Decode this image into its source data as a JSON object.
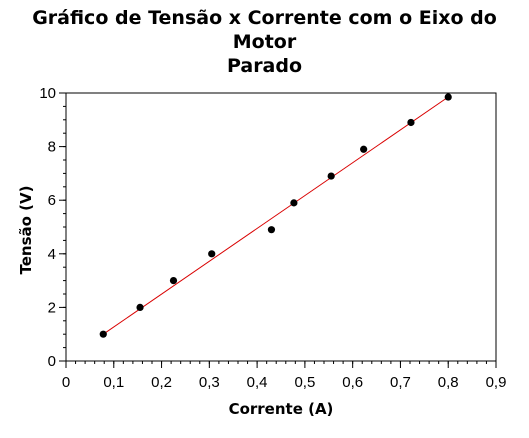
{
  "chart_data": {
    "type": "scatter",
    "title_line1": "Gráfico de Tensão x Corrente com o Eixo do Motor",
    "title_line2": "Parado",
    "xlabel": "Corrente (A)",
    "ylabel": "Tensão (V)",
    "xlim": [
      0,
      0.9
    ],
    "ylim": [
      0,
      10
    ],
    "x_ticks": [
      {
        "value": 0,
        "label": "0"
      },
      {
        "value": 0.1,
        "label": "0,1"
      },
      {
        "value": 0.2,
        "label": "0,2"
      },
      {
        "value": 0.3,
        "label": "0,3"
      },
      {
        "value": 0.4,
        "label": "0,4"
      },
      {
        "value": 0.5,
        "label": "0,5"
      },
      {
        "value": 0.6,
        "label": "0,6"
      },
      {
        "value": 0.7,
        "label": "0,7"
      },
      {
        "value": 0.8,
        "label": "0,8"
      },
      {
        "value": 0.9,
        "label": "0,9"
      }
    ],
    "y_ticks": [
      {
        "value": 0,
        "label": "0"
      },
      {
        "value": 2,
        "label": "2"
      },
      {
        "value": 4,
        "label": "4"
      },
      {
        "value": 6,
        "label": "6"
      },
      {
        "value": 8,
        "label": "8"
      },
      {
        "value": 10,
        "label": "10"
      }
    ],
    "grid": false,
    "points": [
      {
        "x": 0.078,
        "y": 1.0
      },
      {
        "x": 0.155,
        "y": 2.0
      },
      {
        "x": 0.225,
        "y": 3.0
      },
      {
        "x": 0.305,
        "y": 4.0
      },
      {
        "x": 0.43,
        "y": 4.9
      },
      {
        "x": 0.477,
        "y": 5.9
      },
      {
        "x": 0.555,
        "y": 6.9
      },
      {
        "x": 0.623,
        "y": 7.9
      },
      {
        "x": 0.722,
        "y": 8.9
      },
      {
        "x": 0.8,
        "y": 9.85
      }
    ],
    "fit_line": {
      "x": [
        0.078,
        0.8
      ],
      "y": [
        1.0,
        9.85
      ]
    },
    "colors": {
      "points": "#000000",
      "fit_line": "#d90000",
      "axes": "#000000"
    }
  }
}
